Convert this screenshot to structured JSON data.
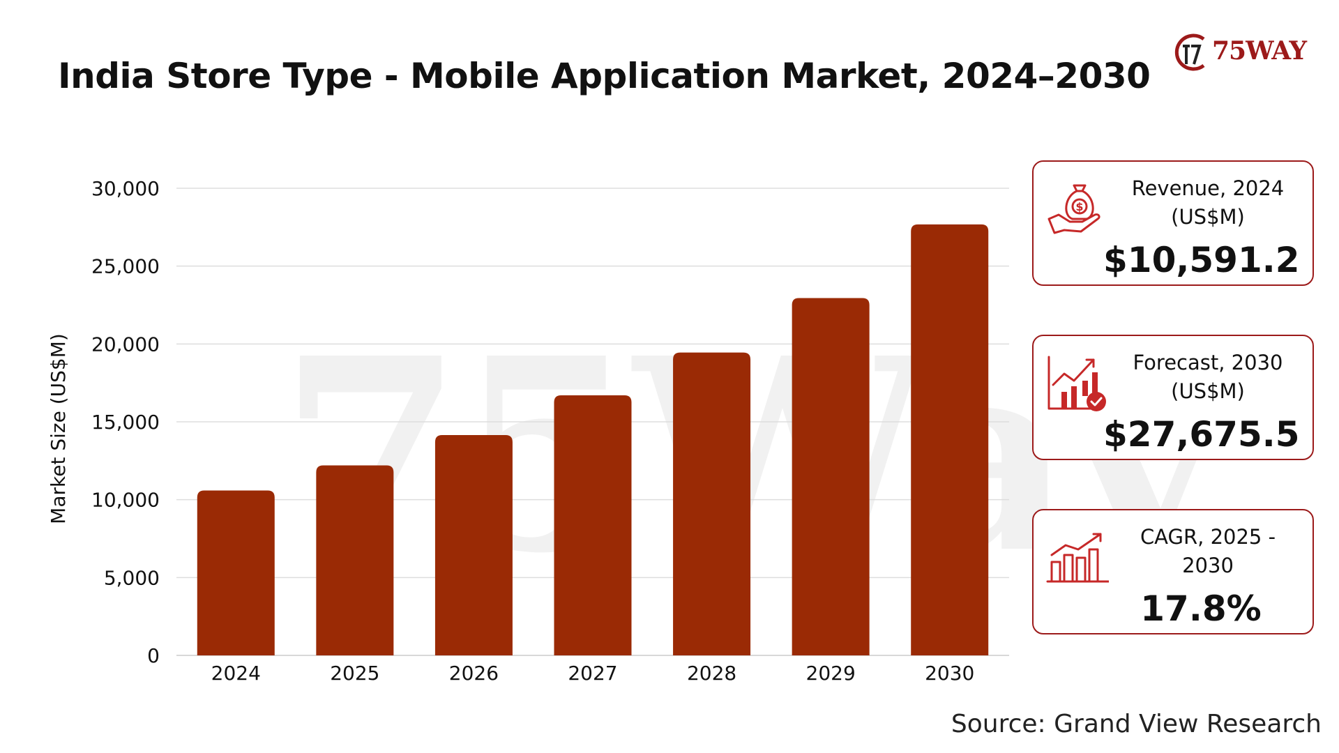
{
  "header": {
    "title": "India Store Type - Mobile Application Market, 2024–2030",
    "logo_text": "75WAY"
  },
  "watermark": "75Way",
  "chart_data": {
    "type": "bar",
    "categories": [
      "2024",
      "2025",
      "2026",
      "2027",
      "2028",
      "2029",
      "2030"
    ],
    "values": [
      10591.2,
      12200,
      14150,
      16700,
      19450,
      22950,
      27675.5
    ],
    "ylabel": "Market Size (US$M)",
    "ylim": [
      0,
      30000
    ],
    "yticks": [
      0,
      5000,
      10000,
      15000,
      20000,
      25000,
      30000
    ],
    "ytick_labels": [
      "0",
      "5,000",
      "10,000",
      "15,000",
      "20,000",
      "25,000",
      "30,000"
    ],
    "grid": true,
    "bar_color": "#9a2a05",
    "grid_color": "#dddddd"
  },
  "cards": [
    {
      "icon": "money-bag-hand-icon",
      "label_line1": "Revenue, 2024",
      "label_line2": "(US$M)",
      "value": "$10,591.2"
    },
    {
      "icon": "growth-chart-check-icon",
      "label_line1": "Forecast, 2030",
      "label_line2": "(US$M)",
      "value": "$27,675.5"
    },
    {
      "icon": "bar-chart-arrow-icon",
      "label_line1": "CAGR, 2025 -",
      "label_line2": "2030",
      "value": "17.8%"
    }
  ],
  "source": "Source: Grand View Research",
  "colors": {
    "accent": "#9c1a1a",
    "icon_red": "#c62828"
  }
}
